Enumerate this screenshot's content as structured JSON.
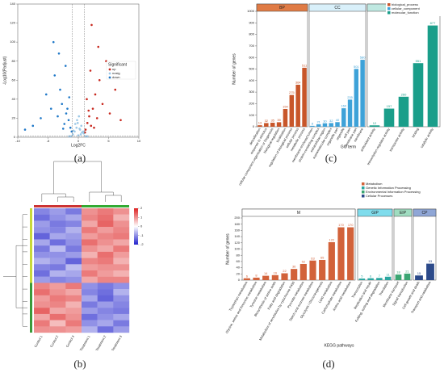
{
  "chart_data": [
    {
      "type": "scatter",
      "panel_label": "(a)",
      "x_label": "Log2FC",
      "y_label": "-Log10(Padjust)",
      "xlim": [
        -10,
        10
      ],
      "xticks": [
        -10,
        -5,
        0,
        5,
        10
      ],
      "ylim": [
        0,
        140
      ],
      "yticks": [
        0,
        20,
        40,
        60,
        80,
        100,
        120,
        140
      ],
      "vlines": [
        -1,
        1
      ],
      "hlines": [
        1.3
      ],
      "legend_title": "Significant",
      "series": [
        {
          "name": "up",
          "color": "#c8281e",
          "x": [
            1.2,
            1.5,
            1.8,
            2.1,
            2.4,
            2.8,
            3.1,
            3.5,
            4.0,
            4.6,
            5.2,
            6.1,
            7.0,
            1.4,
            2.0,
            2.6,
            3.3,
            1.1,
            1.7,
            2.2
          ],
          "y": [
            8,
            15,
            22,
            12,
            30,
            45,
            20,
            60,
            35,
            80,
            25,
            50,
            18,
            40,
            70,
            10,
            95,
            5,
            28,
            118
          ]
        },
        {
          "name": "nosig",
          "color": "#9cc8e6",
          "x": [
            -0.9,
            -0.6,
            -0.3,
            0,
            0.3,
            0.6,
            0.9,
            -1.2,
            1.2,
            -0.5,
            0.5,
            -0.2,
            0.2,
            -0.8,
            0.8,
            -1.5,
            1.5,
            0.1,
            -0.1,
            0.4
          ],
          "y": [
            3,
            6,
            10,
            2,
            8,
            5,
            4,
            1,
            1,
            14,
            12,
            18,
            9,
            7,
            6,
            1,
            1,
            22,
            15,
            3
          ]
        },
        {
          "name": "down",
          "color": "#1f78c8",
          "x": [
            -1.3,
            -1.6,
            -2.0,
            -2.3,
            -2.7,
            -3.0,
            -3.4,
            -3.9,
            -4.5,
            -5.3,
            -6.2,
            -7.5,
            -8.8,
            -1.5,
            -2.1,
            -2.5,
            -3.2,
            -1.1,
            -1.8,
            -4.1
          ],
          "y": [
            10,
            18,
            25,
            14,
            35,
            50,
            22,
            65,
            30,
            45,
            20,
            12,
            8,
            42,
            75,
            9,
            88,
            6,
            30,
            100
          ]
        }
      ]
    },
    {
      "type": "heatmap",
      "panel_label": "(b)",
      "columns": [
        "Control 1",
        "Control 2",
        "Control 3",
        "Treatment 1",
        "Treatment 2",
        "Treatment 3"
      ],
      "clim": [
        -2,
        2
      ],
      "cticks": [
        2,
        1,
        0,
        -1,
        -2
      ],
      "colors": [
        "#2222cc",
        "#ffffff",
        "#dd2222"
      ],
      "values": [
        [
          -1.1,
          -0.9,
          -1.2,
          1.0,
          1.2,
          1.0
        ],
        [
          -1.3,
          -1.0,
          -0.8,
          1.1,
          1.3,
          0.7
        ],
        [
          -0.9,
          -1.2,
          -1.1,
          0.8,
          1.4,
          1.0
        ],
        [
          -1.0,
          -1.1,
          -0.7,
          1.2,
          0.9,
          1.1
        ],
        [
          -1.4,
          -0.8,
          -0.9,
          0.9,
          1.1,
          1.2
        ],
        [
          -0.8,
          -1.3,
          -1.0,
          1.3,
          1.0,
          0.8
        ],
        [
          -1.2,
          -0.6,
          -1.2,
          1.0,
          0.8,
          1.2
        ],
        [
          -1.0,
          -1.0,
          -0.9,
          0.7,
          1.3,
          0.9
        ],
        [
          -0.7,
          -0.9,
          -1.4,
          1.1,
          1.2,
          0.7
        ],
        [
          -1.1,
          -1.2,
          -0.6,
          0.9,
          1.0,
          1.0
        ],
        [
          -1.3,
          -0.7,
          -0.8,
          1.2,
          0.9,
          0.7
        ],
        [
          -0.9,
          -1.1,
          -1.0,
          0.8,
          1.1,
          1.1
        ],
        [
          1.1,
          0.9,
          1.2,
          -1.0,
          -1.2,
          -1.0
        ],
        [
          1.3,
          1.0,
          0.8,
          -1.1,
          -1.3,
          -0.7
        ],
        [
          0.9,
          1.2,
          1.1,
          -0.8,
          -1.4,
          -1.0
        ],
        [
          1.0,
          1.1,
          0.7,
          -1.2,
          -0.9,
          -1.1
        ],
        [
          1.4,
          0.8,
          0.9,
          -0.9,
          -1.1,
          -1.2
        ],
        [
          0.8,
          1.3,
          1.0,
          -1.3,
          -1.0,
          -0.8
        ],
        [
          1.2,
          0.6,
          1.2,
          -1.0,
          -0.8,
          -1.2
        ],
        [
          1.0,
          1.0,
          0.9,
          -0.7,
          -1.3,
          -0.9
        ]
      ]
    },
    {
      "type": "bar",
      "panel_label": "(c)",
      "x_label": "GO term",
      "y_label": "Number of genes",
      "ylim": [
        0,
        1000
      ],
      "yticks": [
        0,
        100,
        200,
        300,
        400,
        500,
        600,
        700,
        800,
        900,
        1000
      ],
      "facets": [
        {
          "name": "BP",
          "label": "biological_process",
          "color": "#c8562a",
          "header_color": "#e07b45",
          "categories": [
            "detoxification",
            "response to stimulus",
            "cellular component organization or biogenesis",
            "biological regulation",
            "localization",
            "regulation of biological process",
            "cellular process",
            "metabolic process"
          ],
          "values": [
            13,
            32,
            35,
            39,
            154,
            275,
            364,
            511
          ]
        },
        {
          "name": "CC",
          "label": "cellular_component",
          "color": "#3ea2d8",
          "header_color": "#d9f0fa",
          "categories": [
            "membrane-enclosed lumen",
            "protein-containing complex",
            "extracellular region",
            "supramolecular complex",
            "organelle part",
            "organelle",
            "cell part",
            "membrane part",
            "membrane"
          ],
          "values": [
            8,
            21,
            30,
            32,
            40,
            160,
            235,
            501,
            580
          ]
        },
        {
          "name": "MF",
          "label": "molecular_function",
          "color": "#1a9e8a",
          "header_color": "#bfe8e1",
          "categories": [
            "antioxidant activity",
            "transcription regulator activity",
            "transporter activity",
            "binding",
            "catalytic activity"
          ],
          "values": [
            12,
            157,
            260,
            551,
            877
          ]
        }
      ]
    },
    {
      "type": "bar",
      "panel_label": "(d)",
      "x_label": "KEGG pathways",
      "y_label": "Number of genes",
      "ylim": [
        0,
        200
      ],
      "yticks": [
        0,
        20,
        40,
        60,
        80,
        100,
        120,
        140,
        160,
        180,
        200
      ],
      "facets": [
        {
          "name": "M",
          "label": "Metabolism",
          "color": "#d2623a",
          "header_color": "#ffffff",
          "categories": [
            "Tryptophan metabolism",
            "Glycine, serine and threonine metabolism",
            "Tyrosine metabolism",
            "Biosynthesis of amino acids",
            "Fatty acid degradation",
            "Metabolism of xenobiotics by cytochrome P450",
            "Pyruvate metabolism",
            "Starch and sucrose metabolism",
            "Glycolysis / Gluconeogenesis",
            "Lipid metabolism",
            "Carbohydrate metabolism",
            "Amino acid metabolism"
          ],
          "values": [
            6,
            8,
            14,
            16,
            22,
            36,
            52,
            63,
            65,
            122,
            170,
            170
          ]
        },
        {
          "name": "GIP",
          "label": "Genetic Information Processing",
          "color": "#2aa6a0",
          "header_color": "#7fdcec",
          "categories": [
            "Transcription",
            "Replication and repair",
            "Folding, sorting and degradation",
            "Translation"
          ],
          "values": [
            5,
            6,
            7,
            11
          ]
        },
        {
          "name": "EIP",
          "label": "Environmental Information Processing",
          "color": "#3aa672",
          "header_color": "#9fdcc0",
          "categories": [
            "Membrane transport",
            "Signal transduction"
          ],
          "values": [
            18,
            21
          ]
        },
        {
          "name": "CP",
          "label": "Cellular Processes",
          "color": "#2c4a8a",
          "header_color": "#8fa6d6",
          "categories": [
            "Cell growth and death",
            "Transport and catabolism"
          ],
          "values": [
            15,
            53
          ]
        }
      ]
    }
  ]
}
